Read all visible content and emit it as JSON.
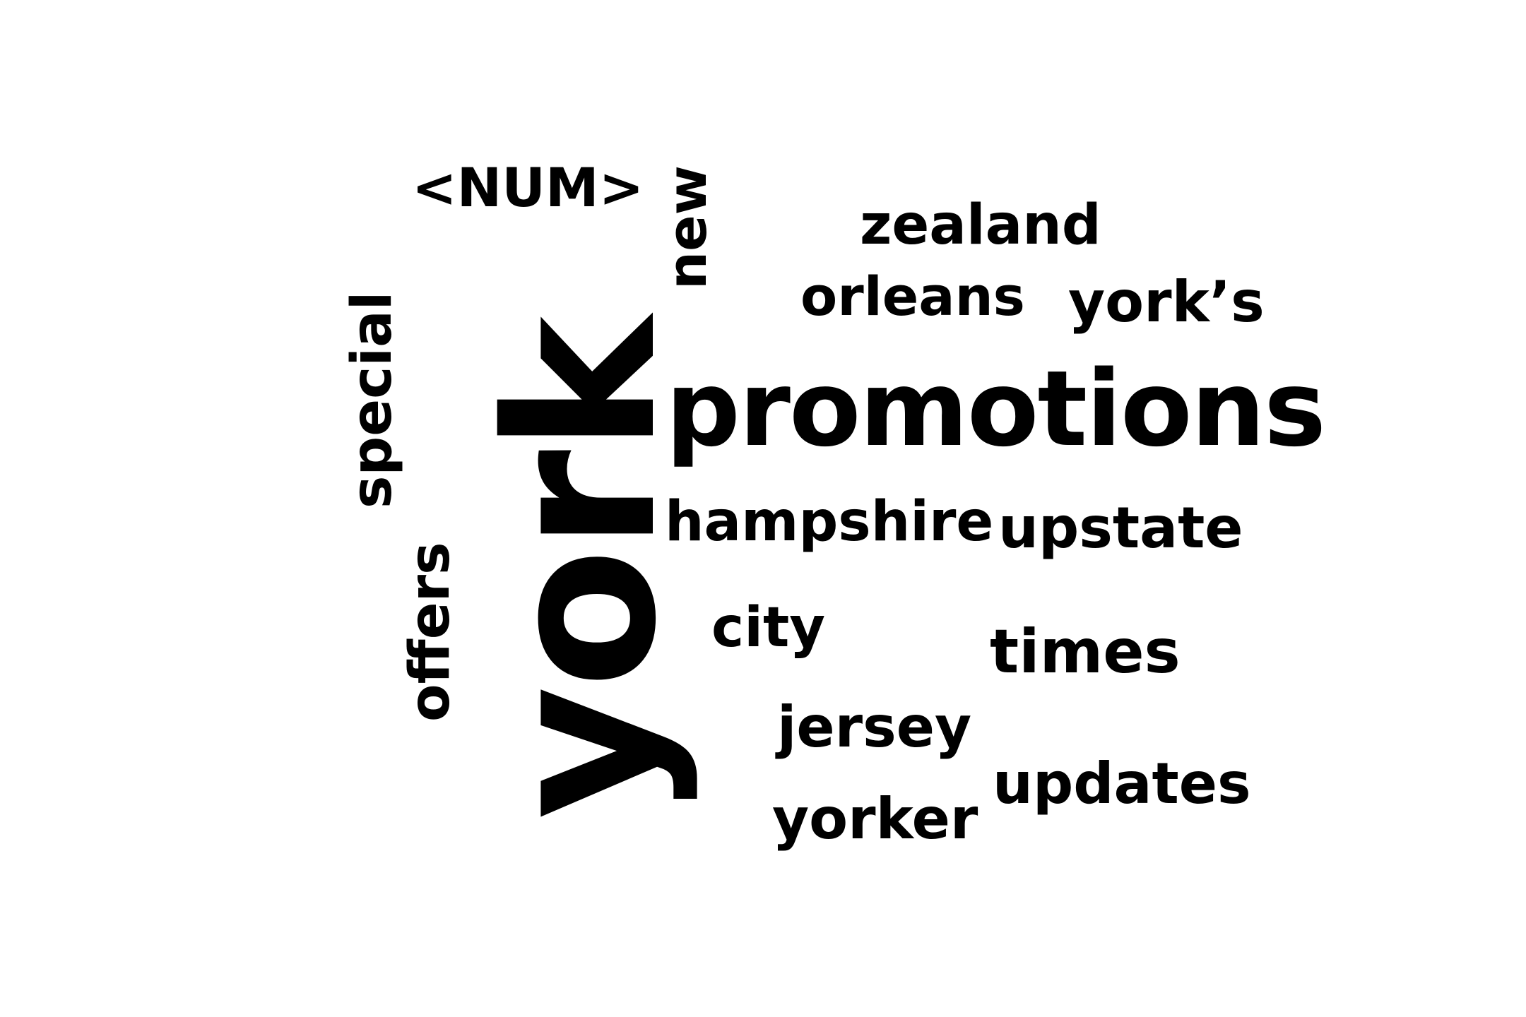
{
  "word_cloud": {
    "words": {
      "york": "york",
      "promotions": "promotions",
      "num": "<NUM>",
      "new": "new",
      "zealand": "zealand",
      "orleans": "orleans",
      "yorks": "york’s",
      "special": "special",
      "offers": "offers",
      "hampshire": "hampshire",
      "upstate": "upstate",
      "city": "city",
      "times": "times",
      "jersey": "jersey",
      "updates": "updates",
      "yorker": "yorker"
    },
    "text_color": "#000000",
    "background_color": "#ffffff"
  }
}
